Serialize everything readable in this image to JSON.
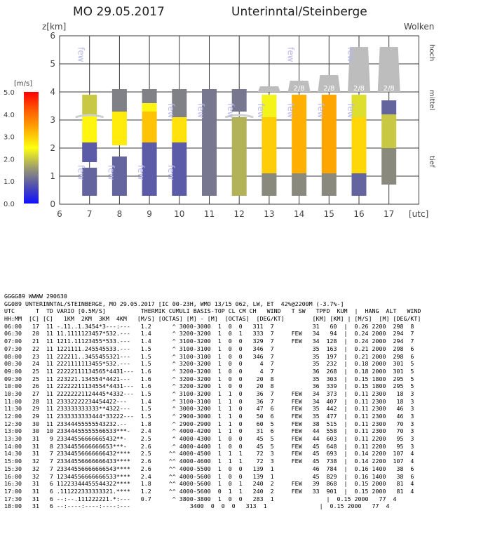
{
  "header": {
    "date": "MO 29.05.2017",
    "location": "Unterinntal/Steinberge"
  },
  "labels": {
    "y_axis": "z[km]",
    "clouds": "Wolken",
    "vario_unit": "[m/s]",
    "x_unit": "[utc]",
    "level_hoch": "hoch",
    "level_mittel": "mittel",
    "level_tief": "tief"
  },
  "chart_data": {
    "type": "bar",
    "x_ticks": [
      6,
      7,
      8,
      9,
      10,
      11,
      12,
      13,
      14,
      15,
      16,
      17
    ],
    "y_ticks": [
      0,
      1,
      2,
      3,
      4,
      5,
      6
    ],
    "ylim": [
      0,
      6
    ],
    "xlim": [
      6,
      18
    ],
    "colorbar": {
      "unit": "[m/s]",
      "ticks": [
        "0.0",
        "1.0",
        "2.0",
        "3.0",
        "4.0",
        "5.0"
      ],
      "range": [
        0,
        5
      ]
    },
    "thermal_columns": [
      {
        "hour": 7,
        "segments": [
          [
            0.3,
            1.3,
            1.0
          ],
          [
            1.5,
            2.2,
            0.9
          ],
          [
            2.2,
            3.2,
            2.6
          ],
          [
            3.2,
            3.9,
            2.0
          ]
        ]
      },
      {
        "hour": 8,
        "segments": [
          [
            0.3,
            1.7,
            1.0
          ],
          [
            2.1,
            3.3,
            2.7
          ],
          [
            3.3,
            4.1,
            1.3
          ]
        ]
      },
      {
        "hour": 9,
        "segments": [
          [
            0.3,
            2.2,
            0.9
          ],
          [
            2.2,
            3.3,
            3.1
          ],
          [
            3.3,
            3.6,
            2.6
          ],
          [
            3.6,
            4.1,
            1.3
          ]
        ]
      },
      {
        "hour": 10,
        "segments": [
          [
            0.3,
            2.2,
            0.9
          ],
          [
            2.2,
            3.1,
            2.8
          ],
          [
            3.1,
            4.1,
            1.3
          ]
        ]
      },
      {
        "hour": 11,
        "segments": [
          [
            0.3,
            4.1,
            1.2
          ]
        ]
      },
      {
        "hour": 12,
        "segments": [
          [
            0.3,
            3.1,
            1.8
          ],
          [
            3.3,
            4.1,
            1.2
          ]
        ]
      },
      {
        "hour": 13,
        "segments": [
          [
            0.3,
            1.1,
            1.4
          ],
          [
            1.1,
            3.1,
            3.0
          ],
          [
            3.1,
            3.9,
            2.4
          ]
        ]
      },
      {
        "hour": 14,
        "segments": [
          [
            0.3,
            1.1,
            1.4
          ],
          [
            1.1,
            3.9,
            3.3
          ]
        ]
      },
      {
        "hour": 15,
        "segments": [
          [
            0.3,
            1.1,
            1.4
          ],
          [
            1.1,
            3.9,
            3.4
          ]
        ]
      },
      {
        "hour": 16,
        "segments": [
          [
            0.3,
            1.1,
            1.0
          ],
          [
            1.1,
            3.1,
            2.9
          ],
          [
            3.1,
            3.9,
            2.2
          ]
        ]
      },
      {
        "hour": 17,
        "segments": [
          [
            0.7,
            2.0,
            1.4
          ],
          [
            2.0,
            3.2,
            2.0
          ],
          [
            3.2,
            3.7,
            1.0
          ]
        ]
      }
    ],
    "cloud_marks": [
      {
        "hour": 7,
        "label": "few",
        "level": "tief"
      },
      {
        "hour": 7,
        "label": "few",
        "level": "hoch"
      },
      {
        "hour": 8,
        "label": "few",
        "level": "tief"
      },
      {
        "hour": 9,
        "label": "few",
        "level": "tief"
      },
      {
        "hour": 10,
        "label": "few",
        "level": "tief"
      },
      {
        "hour": 10,
        "label": "few",
        "level": "mittel"
      },
      {
        "hour": 11,
        "label": "few",
        "level": "mittel"
      },
      {
        "hour": 12,
        "label": "few",
        "level": "mittel"
      },
      {
        "hour": 13,
        "label": "few",
        "level": "mittel"
      },
      {
        "hour": 14,
        "label": "few",
        "level": "mittel"
      },
      {
        "hour": 14,
        "label": "few",
        "level": "hoch"
      },
      {
        "hour": 15,
        "label": "few",
        "level": "mittel"
      },
      {
        "hour": 16,
        "label": "few",
        "level": "mittel"
      },
      {
        "hour": 16,
        "label": "few",
        "level": "hoch"
      }
    ],
    "octa_blocks": [
      {
        "hour": 13,
        "label": "",
        "base": 4.0,
        "top": 4.2
      },
      {
        "hour": 14,
        "label": "2/8",
        "base": 4.0,
        "top": 4.4
      },
      {
        "hour": 15,
        "label": "2/8",
        "base": 4.0,
        "top": 4.6
      },
      {
        "hour": 16,
        "label": "2/8",
        "base": 4.0,
        "top": 5.6
      },
      {
        "hour": 17,
        "label": "2/8",
        "base": 4.0,
        "top": 5.6
      }
    ],
    "haze_marks": [
      7,
      12
    ]
  },
  "table_lines": [
    "GGGG89 WWWW 290630",
    "GG089 UNTERINNTAL/STEINBERGE, MO 29.05.2017 [IC 00-23H, WMO 13/15 062, LW, ET  42%@2200M (-3.7%-]",
    "UTC      T  TD VARIO [0.5M/S]          THERMIK CUMULI BASIS-TOP CL CM CH   WIND   T SW   TPFD  KUM  |  HANG  ALT   WIND",
    "HH:MM  [C] [C]   1KM  2KM  3KM  4KM   [M/S] [OCTAS] [M] - [M]  [OCTAS]  [DEG/KT]        [KM] [KM] | [M/S]  [M] [DEG/KT]",
    "06:00   17  11 -.11..1.3454*3---:---   1.2      ^ 3000-3000  1  0  0   311  7           31   60  |  0.26 2200  298  8",
    "06:30   20  11 11.1111123457*532.---   1.4      ^ 3200-3200  1  0  1   333  7     FEW   34   94  |  0.24 2000  294  7",
    "07:00   21  11 1211.11123455*533.---   1.4      ^ 3100-3200  1  0  0   329  7     FEW   34  128  |  0.24 2000  294  7",
    "07:30   22  11 1221111.245545533.---   1.5      ^ 3100-3100  1  0  0   346  7           35  163  |  0.21 2000  298  6",
    "08:00   23  11 222211..3455455321---   1.5      ^ 3100-3100  1  0  0   346  7           35  197  |  0.21 2000  298  6",
    "08:30   24  11 2221111113455*532.---   1.5      ^ 3200-3200  1  0  0     4  7           35  232  |  0.18 2000  301  5",
    "09:00   25  11 22222111134565*4431---  1.6      ^ 3200-3200  1  0  0     4  7           36  268  |  0.18 2000  301  5",
    "09:30   25  11 223221.134554*4421---   1.6      ^ 3200-3200  1  0  0    20  8           35  303  |  0.15 1800  295  5",
    "10:00   26  11 22222211134554*4431---  1.6      ^ 3200-3200  1  0  0    20  8           36  339  |  0.15 1800  295  5",
    "10:30   27  11 22222221124445*4332---  1.5      ^ 3100-3200  1  1  0    36  7     FEW   34  373  |  0.11 2300   18  3",
    "11:00   28  11 23332222234454422---    1.4      ^ 3100-3100  1  1  0    36  7     FEW   34  407  |  0.11 2300   18  3",
    "11:30   29  11 233333333333**4322---   1.5      ^ 3000-3200  1  1  0    47  6     FEW   35  442  |  0.11 2300   46  3",
    "12:00   29  11 2333333333444*33222---  1.5      ^ 2900-3000  1  1  0    50  6     FEW   35  477  |  0.11 2300   46  3",
    "12:30   30  11 23344455555543232.--    1.8      ^ 2900-2900  1  1  0    60  5     FEW   38  515  |  0.11 2300   70  3",
    "13:00   30  10 23344455555566533***-   2.4      ^ 4000-4200  1  1  0    31  6     FEW   44  558  |  0.11 2300   70  3",
    "13:30   31   9 23344556666665432**-    2.5      ^ 4000-4300  1  0  0    45  5     FEW   44  603  |  0.11 2200   95  3",
    "14:00   31   8 2334455666666653***-    2.6      ^ 4000-4400  1  0  0    45  5     FEW   45  648  |  0.11 2200   95  3",
    "14:30   31   7 23344556666666432****   2.5     ^^ 4000-4500  1  1  1    72  3     FEW   45  693  |  0.14 2200  107  4",
    "15:00   32   7 23344556666666433****   2.6     ^^ 4000-4600  1  1  1    72  3     FEW   45  738  |  0.14 2200  107  4",
    "15:30   32   7 23344556666666543****   2.6     ^^ 4000-5500  1  0  0   139  1           46  784  |  0.16 1400   38  6",
    "16:00   32   7 12344556666666533****   2.4     ^^ 4000-5600  1  0  0   139  1           45  829  |  0.16 1400   38  6",
    "16:30   31   6 11223344455544322****   1.8     ^^ 4000-5600  1  0  1   240  2     FEW   39  868  |  0.15 2000   81  4",
    "17:00   31   6 .111222333333321.****   1.2     ^^ 4000-5600  0  1  1   240  2     FEW   33  901  |  0.15 2000   81  4",
    "17:30   31   6 --:--.111222221.*:---   0.7      ^ 3800-3800  1  0  0   283  1               |  0.15 2000   77  4",
    "18:00   31   6 --:----:----:----:---                 3400  0  0  0   313  1               |  0.15 2000   77  4"
  ],
  "colors": {
    "plot_bg": "#ffffff",
    "grid": "#3a3a3a",
    "few_text": "#b8b8e8",
    "octa": "#bdbdbd"
  }
}
